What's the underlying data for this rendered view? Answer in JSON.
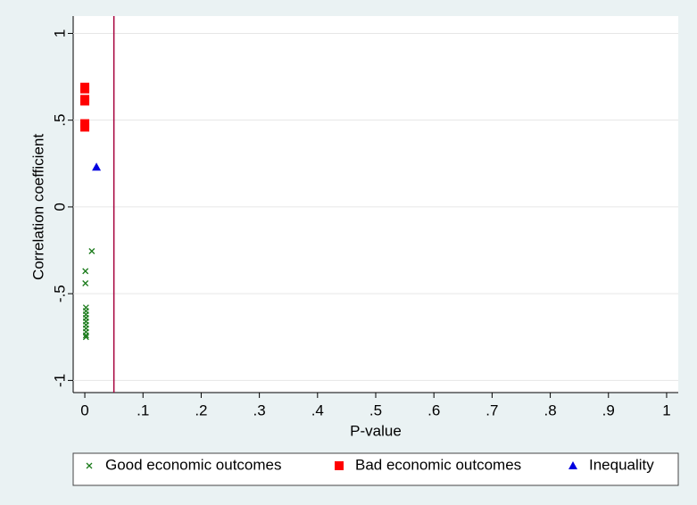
{
  "chart_data": {
    "type": "scatter",
    "x_label": "P-value",
    "y_label": "Correlation coefficient",
    "xlim": [
      -0.02,
      1.02
    ],
    "ylim": [
      -1.07,
      1.1
    ],
    "xticks": [
      0,
      {
        "value": 0.1,
        "label": ".1"
      },
      {
        "value": 0.2,
        "label": ".2"
      },
      {
        "value": 0.3,
        "label": ".3"
      },
      {
        "value": 0.4,
        "label": ".4"
      },
      {
        "value": 0.5,
        "label": ".5"
      },
      {
        "value": 0.6,
        "label": ".6"
      },
      {
        "value": 0.7,
        "label": ".7"
      },
      {
        "value": 0.8,
        "label": ".8"
      },
      {
        "value": 0.9,
        "label": ".9"
      },
      1
    ],
    "yticks": [
      -1,
      {
        "value": -0.5,
        "label": "-.5"
      },
      0,
      {
        "value": 0.5,
        "label": ".5"
      },
      1
    ],
    "grid": true,
    "xline": {
      "value": 0.05,
      "color": "#a6003c"
    },
    "series": [
      {
        "name": "Good economic outcomes",
        "color": "#1a7a1a",
        "marker": "x",
        "x": [
          0.012,
          0.001,
          0.001,
          0.002,
          0.002,
          0.002,
          0.002,
          0.002,
          0.002,
          0.002,
          0.002,
          0.002,
          0.002
        ],
        "values": [
          -0.255,
          -0.37,
          -0.44,
          -0.58,
          -0.6,
          -0.62,
          -0.64,
          -0.66,
          -0.68,
          -0.7,
          -0.72,
          -0.74,
          -0.75
        ]
      },
      {
        "name": "Bad economic outcomes",
        "color": "#ff0000",
        "marker": "square",
        "x": [
          0.0,
          0.0,
          0.0,
          0.0,
          0.0,
          0.0
        ],
        "values": [
          0.69,
          0.68,
          0.62,
          0.61,
          0.48,
          0.46
        ]
      },
      {
        "name": "Inequality",
        "color": "#0000e0",
        "marker": "triangle",
        "x": [
          0.02
        ],
        "values": [
          0.23
        ]
      }
    ]
  }
}
